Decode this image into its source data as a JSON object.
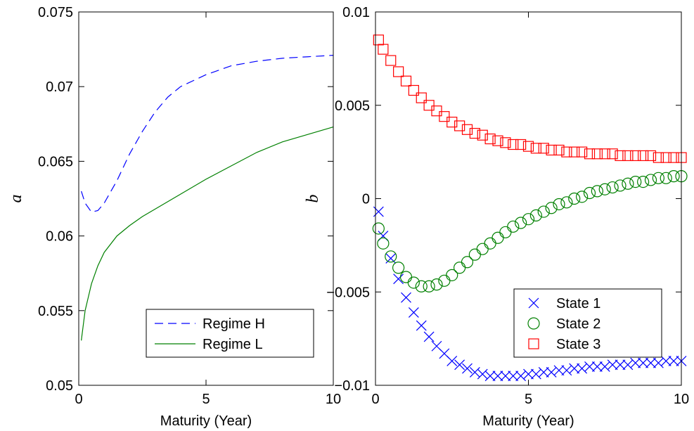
{
  "chart_data": [
    {
      "type": "line",
      "xlabel": "Maturity (Year)",
      "ylabel": "a",
      "legend": "lower right",
      "xlim": [
        0,
        10
      ],
      "xticks": [
        0,
        5,
        10
      ],
      "ylim": [
        0.05,
        0.075
      ],
      "yticks": [
        0.05,
        0.055,
        0.06,
        0.065,
        0.07,
        0.075
      ],
      "x": [
        0.1,
        0.25,
        0.5,
        0.75,
        1,
        1.5,
        2,
        2.5,
        3,
        3.5,
        4,
        5,
        6,
        7,
        8,
        9,
        10
      ],
      "series": [
        {
          "name": "Regime H",
          "color": "#0000ff",
          "line_style": "dashed",
          "values": [
            0.063,
            0.0622,
            0.0616,
            0.0617,
            0.0622,
            0.0637,
            0.0655,
            0.067,
            0.0683,
            0.0693,
            0.07,
            0.0708,
            0.0714,
            0.0717,
            0.0719,
            0.072,
            0.0721
          ]
        },
        {
          "name": "Regime L",
          "color": "#008000",
          "line_style": "solid",
          "values": [
            0.053,
            0.055,
            0.0568,
            0.058,
            0.0589,
            0.06,
            0.0607,
            0.0613,
            0.0618,
            0.0623,
            0.0628,
            0.0638,
            0.0647,
            0.0656,
            0.0663,
            0.0668,
            0.0673
          ]
        }
      ]
    },
    {
      "type": "scatter",
      "xlabel": "Maturity (Year)",
      "ylabel": "b",
      "legend": "lower right",
      "xlim": [
        0,
        10
      ],
      "xticks": [
        0,
        5,
        10
      ],
      "ylim": [
        -0.01,
        0.01
      ],
      "yticks": [
        {
          "value": -0.01,
          "label": "−0.01"
        },
        {
          "value": -0.005,
          "label": "−0.005"
        },
        0,
        0.005,
        0.01
      ],
      "x": [
        0.1,
        0.25,
        0.5,
        0.75,
        1,
        1.25,
        1.5,
        1.75,
        2,
        2.25,
        2.5,
        2.75,
        3,
        3.25,
        3.5,
        3.75,
        4,
        4.25,
        4.5,
        4.75,
        5,
        5.25,
        5.5,
        5.75,
        6,
        6.25,
        6.5,
        6.75,
        7,
        7.25,
        7.5,
        7.75,
        8,
        8.25,
        8.5,
        8.75,
        9,
        9.25,
        9.5,
        9.75,
        10
      ],
      "series": [
        {
          "name": "State 1",
          "color": "#0000ff",
          "marker": "x",
          "values": [
            -0.0007,
            -0.002,
            -0.0032,
            -0.0043,
            -0.0053,
            -0.0061,
            -0.0068,
            -0.0074,
            -0.0079,
            -0.0083,
            -0.0087,
            -0.0089,
            -0.0091,
            -0.0093,
            -0.0094,
            -0.0095,
            -0.0095,
            -0.0095,
            -0.0095,
            -0.0095,
            -0.0094,
            -0.0094,
            -0.0093,
            -0.0093,
            -0.0092,
            -0.0092,
            -0.0091,
            -0.0091,
            -0.009,
            -0.009,
            -0.009,
            -0.0089,
            -0.0089,
            -0.0089,
            -0.0088,
            -0.0088,
            -0.0088,
            -0.0088,
            -0.0087,
            -0.0087,
            -0.0087
          ]
        },
        {
          "name": "State 2",
          "color": "#008000",
          "marker": "o",
          "values": [
            -0.0016,
            -0.0024,
            -0.0031,
            -0.0037,
            -0.0042,
            -0.0045,
            -0.0047,
            -0.0047,
            -0.0046,
            -0.0044,
            -0.0041,
            -0.0037,
            -0.0034,
            -0.003,
            -0.0027,
            -0.0024,
            -0.0021,
            -0.0018,
            -0.0015,
            -0.0013,
            -0.0011,
            -0.0009,
            -0.0007,
            -0.0005,
            -0.0003,
            -0.0002,
            0.0,
            0.0001,
            0.0003,
            0.0004,
            0.0005,
            0.0006,
            0.0007,
            0.0008,
            0.0009,
            0.0009,
            0.001,
            0.0011,
            0.0011,
            0.0012,
            0.0012
          ]
        },
        {
          "name": "State 3",
          "color": "#ff0000",
          "marker": "s",
          "values": [
            0.0085,
            0.008,
            0.0074,
            0.0068,
            0.0063,
            0.0058,
            0.0054,
            0.005,
            0.0047,
            0.0044,
            0.0041,
            0.0039,
            0.0037,
            0.0035,
            0.0034,
            0.0032,
            0.0031,
            0.003,
            0.0029,
            0.0029,
            0.0028,
            0.0027,
            0.0027,
            0.0026,
            0.0026,
            0.0025,
            0.0025,
            0.0025,
            0.0024,
            0.0024,
            0.0024,
            0.0024,
            0.0023,
            0.0023,
            0.0023,
            0.0023,
            0.0023,
            0.0022,
            0.0022,
            0.0022,
            0.0022
          ]
        }
      ]
    }
  ]
}
